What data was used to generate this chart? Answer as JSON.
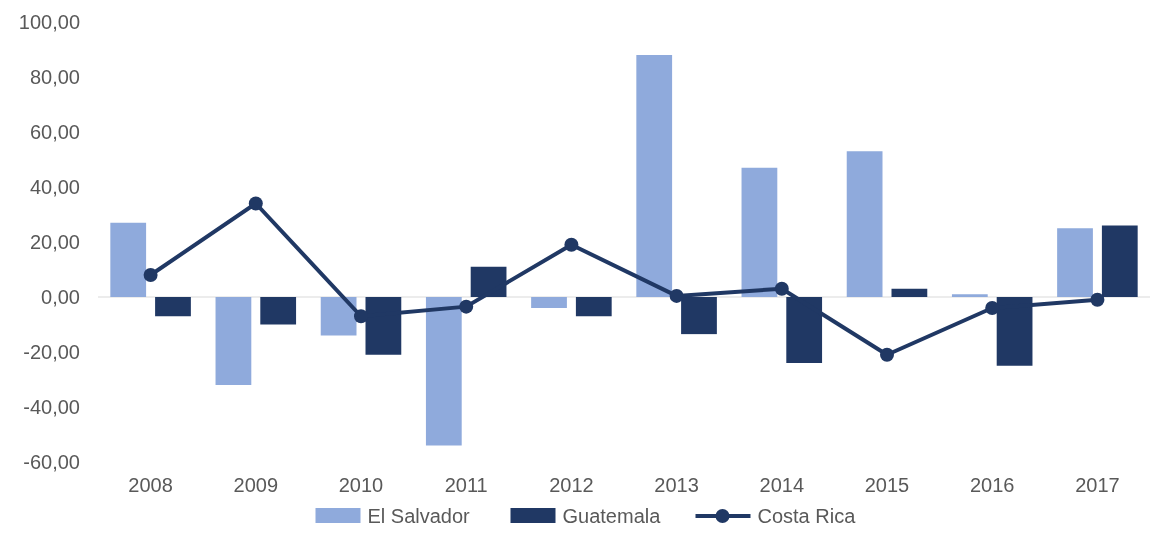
{
  "chart_data": {
    "type": "bar",
    "categories": [
      "2008",
      "2009",
      "2010",
      "2011",
      "2012",
      "2013",
      "2014",
      "2015",
      "2016",
      "2017"
    ],
    "series": [
      {
        "name": "El Salvador",
        "color": "#8faadc",
        "values": [
          27,
          -32,
          -14,
          -54,
          -4,
          88,
          47,
          53,
          1,
          25
        ]
      },
      {
        "name": "Guatemala",
        "color": "#203864",
        "values": [
          -7,
          -10,
          -21,
          11,
          -7,
          -13.5,
          -24,
          3,
          -25,
          26
        ]
      },
      {
        "name": "Costa Rica",
        "type": "line",
        "color": "#203864",
        "values": [
          8,
          34,
          -7,
          -3.5,
          19,
          0.4,
          3,
          -21,
          -4,
          -1
        ]
      }
    ],
    "ylim": [
      -60,
      100
    ],
    "yticks": [
      {
        "value": -60,
        "label": "-60,00"
      },
      {
        "value": -40,
        "label": "-40,00"
      },
      {
        "value": -20,
        "label": "-20,00"
      },
      {
        "value": 0,
        "label": "0,00"
      },
      {
        "value": 20,
        "label": "20,00"
      },
      {
        "value": 40,
        "label": "40,00"
      },
      {
        "value": 60,
        "label": "60,00"
      },
      {
        "value": 80,
        "label": "80,00"
      },
      {
        "value": 100,
        "label": "100,00"
      }
    ],
    "legend": "bottom",
    "marker": "circle",
    "line_style": "solid"
  }
}
